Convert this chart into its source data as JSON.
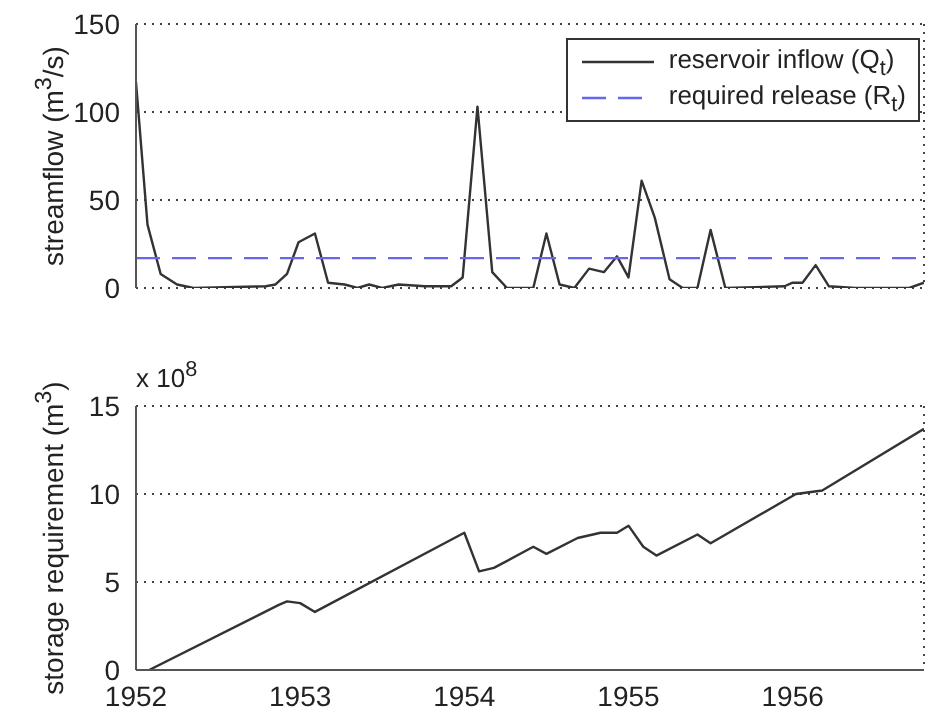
{
  "chart_data": [
    {
      "type": "line",
      "ylabel": "streamflow (m$^{3}$/s)",
      "xlim": [
        1952,
        1956.8
      ],
      "xticks": [
        1952,
        1953,
        1954,
        1955,
        1956
      ],
      "ylim": [
        0,
        150
      ],
      "yticks": [
        0,
        50,
        100,
        150
      ],
      "grid": true,
      "legend": "top right",
      "tick_labels": "y",
      "series": [
        {
          "name": "reservoir inflow (Q$_{t}$)",
          "color": "#333333",
          "line_style": "solid",
          "x": [
            1952.0,
            1952.07,
            1952.15,
            1952.25,
            1952.35,
            1952.79,
            1952.85,
            1952.92,
            1952.99,
            1953.09,
            1953.17,
            1953.27,
            1953.35,
            1953.42,
            1953.5,
            1953.6,
            1953.76,
            1953.92,
            1953.99,
            1954.08,
            1954.17,
            1954.26,
            1954.42,
            1954.5,
            1954.58,
            1954.67,
            1954.76,
            1954.85,
            1954.93,
            1955.0,
            1955.08,
            1955.16,
            1955.25,
            1955.33,
            1955.42,
            1955.5,
            1955.59,
            1955.95,
            1956.0,
            1956.06,
            1956.14,
            1956.22,
            1956.38,
            1956.71,
            1956.8
          ],
          "values": [
            117,
            36,
            8,
            2,
            0,
            1,
            2,
            8,
            26,
            31,
            3,
            2,
            0,
            2,
            0,
            2,
            1,
            1,
            6,
            103,
            9,
            0,
            0,
            31,
            2,
            0,
            11,
            9,
            18,
            6,
            61,
            40,
            5,
            0,
            0,
            33,
            0,
            1,
            3,
            3,
            13,
            1,
            0,
            0,
            3
          ]
        },
        {
          "name": "required release (R$_{t}$)",
          "color": "#6666ee",
          "line_style": "dashed",
          "x": [
            1952,
            1956.8
          ],
          "values": [
            17,
            17
          ]
        }
      ]
    },
    {
      "type": "line",
      "ylabel": "storage requirement (m$^{3}$)",
      "annotations": [
        "x 10$^{8}$"
      ],
      "xlim": [
        1952,
        1956.8
      ],
      "xticks": [
        1952,
        1953,
        1954,
        1955,
        1956
      ],
      "ylim": [
        0,
        15
      ],
      "yticks": [
        0,
        5,
        10,
        15
      ],
      "grid": true,
      "series": [
        {
          "color": "#333333",
          "x": [
            1952.08,
            1952.87,
            1952.92,
            1953.0,
            1953.09,
            1954.0,
            1954.09,
            1954.18,
            1954.42,
            1954.5,
            1954.69,
            1954.83,
            1954.93,
            1955.0,
            1955.09,
            1955.17,
            1955.42,
            1955.5,
            1956.02,
            1956.18,
            1956.8
          ],
          "values": [
            0,
            3.7,
            3.9,
            3.8,
            3.3,
            7.8,
            5.6,
            5.8,
            7.0,
            6.6,
            7.5,
            7.8,
            7.8,
            8.2,
            7.0,
            6.5,
            7.7,
            7.2,
            10,
            10.2,
            13.7
          ]
        }
      ]
    }
  ]
}
